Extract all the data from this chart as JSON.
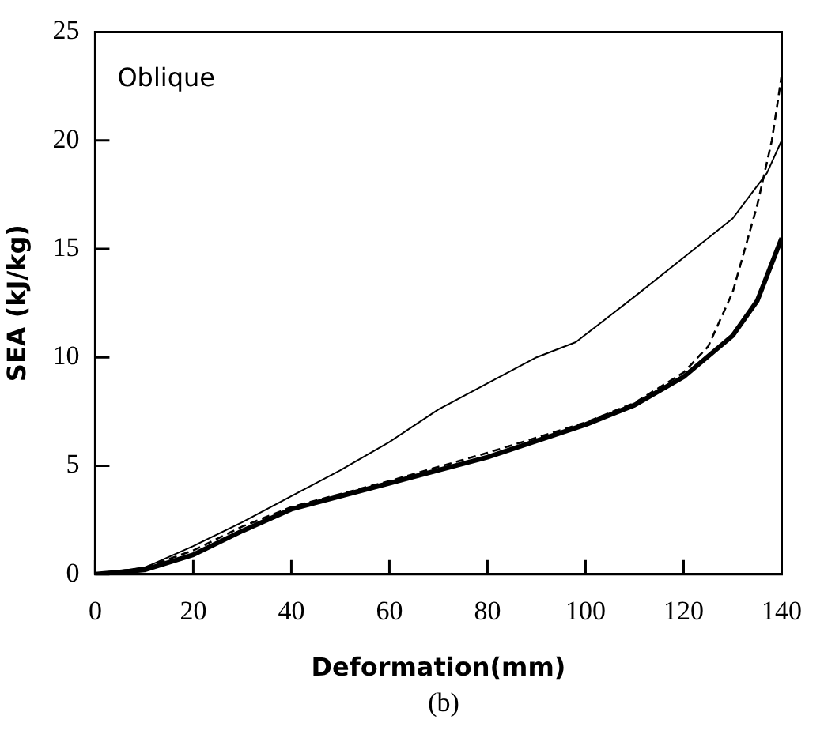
{
  "chart_data": {
    "type": "line",
    "xlabel": "Deformation(mm)",
    "ylabel": "SEA (kJ/kg)",
    "annotations": [
      "Oblique",
      "(b)"
    ],
    "xlim": [
      0,
      140
    ],
    "xticks": [
      0,
      20,
      40,
      60,
      80,
      100,
      120,
      140
    ],
    "ylim": [
      0,
      25
    ],
    "yticks": [
      0,
      5,
      10,
      15,
      20,
      25
    ],
    "grid": false,
    "legend": false,
    "marker": "none",
    "series": [
      {
        "color": "#000000",
        "line_style": "solid",
        "x": [
          0,
          10,
          20,
          30,
          40,
          50,
          60,
          70,
          80,
          90,
          98,
          110,
          120,
          130,
          137,
          140
        ],
        "values": [
          0,
          0.3,
          1.3,
          2.4,
          3.6,
          4.8,
          6.1,
          7.6,
          8.8,
          10,
          10.7,
          12.8,
          14.6,
          16.4,
          18.5,
          20
        ]
      },
      {
        "color": "#000000",
        "line_style": "dashed",
        "x": [
          0,
          10,
          20,
          30,
          40,
          60,
          80,
          100,
          110,
          120,
          125,
          130,
          135,
          138,
          140
        ],
        "values": [
          0,
          0.3,
          1.1,
          2.2,
          3.1,
          4.3,
          5.6,
          7,
          7.9,
          9.3,
          10.5,
          13,
          17,
          20,
          23
        ]
      },
      {
        "color": "#000000",
        "line_style": "solid",
        "x": [
          0,
          10,
          20,
          30,
          40,
          60,
          80,
          100,
          110,
          120,
          130,
          135,
          140
        ],
        "values": [
          0,
          0.2,
          0.9,
          2,
          3,
          4.2,
          5.4,
          6.9,
          7.8,
          9.1,
          11,
          12.6,
          15.5
        ]
      }
    ]
  }
}
